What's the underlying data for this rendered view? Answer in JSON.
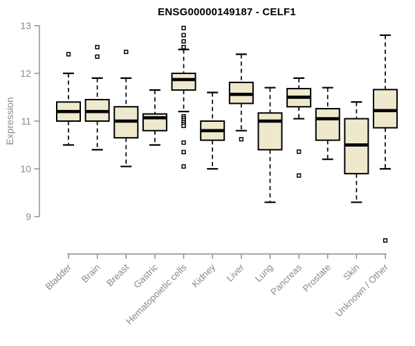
{
  "chart_data": {
    "type": "boxplot",
    "title": "ENSG00000149187 - CELF1",
    "ylabel": "Expression",
    "xlabel": "",
    "yticks": [
      9,
      10,
      11,
      12,
      13
    ],
    "y_axis_range": [
      9,
      13
    ],
    "grid": "off",
    "legend": "none",
    "categories": [
      "Bladder",
      "Brain",
      "Breast",
      "Gastric",
      "Hematopoietic cells",
      "Kidney",
      "Liver",
      "Lung",
      "Pancreas",
      "Prostate",
      "Skin",
      "Unknown / Other"
    ],
    "series": [
      {
        "category": "Bladder",
        "whisker_low": 10.5,
        "q1": 11.0,
        "median": 11.2,
        "q3": 11.4,
        "whisker_high": 12.0,
        "outliers": [
          12.4
        ]
      },
      {
        "category": "Brain",
        "whisker_low": 10.4,
        "q1": 11.0,
        "median": 11.2,
        "q3": 11.45,
        "whisker_high": 11.9,
        "outliers": [
          12.35,
          12.55
        ]
      },
      {
        "category": "Breast",
        "whisker_low": 10.05,
        "q1": 10.65,
        "median": 11.0,
        "q3": 11.3,
        "whisker_high": 11.9,
        "outliers": [
          12.45
        ]
      },
      {
        "category": "Gastric",
        "whisker_low": 10.5,
        "q1": 10.8,
        "median": 11.07,
        "q3": 11.15,
        "whisker_high": 11.65,
        "outliers": []
      },
      {
        "category": "Hematopoietic cells",
        "whisker_low": 11.2,
        "q1": 11.65,
        "median": 11.87,
        "q3": 12.0,
        "whisker_high": 12.5,
        "outliers": [
          12.95,
          12.8,
          12.67,
          12.55,
          11.1,
          11.06,
          11.02,
          10.98,
          10.94,
          10.9,
          10.55,
          10.35,
          10.05
        ]
      },
      {
        "category": "Kidney",
        "whisker_low": 10.0,
        "q1": 10.6,
        "median": 10.8,
        "q3": 11.0,
        "whisker_high": 11.6,
        "outliers": []
      },
      {
        "category": "Liver",
        "whisker_low": 10.8,
        "q1": 11.37,
        "median": 11.56,
        "q3": 11.81,
        "whisker_high": 12.4,
        "outliers": [
          10.62
        ]
      },
      {
        "category": "Lung",
        "whisker_low": 9.3,
        "q1": 10.4,
        "median": 11.0,
        "q3": 11.17,
        "whisker_high": 11.7,
        "outliers": []
      },
      {
        "category": "Pancreas",
        "whisker_low": 11.05,
        "q1": 11.3,
        "median": 11.5,
        "q3": 11.68,
        "whisker_high": 11.9,
        "outliers": [
          10.36,
          9.86
        ]
      },
      {
        "category": "Prostate",
        "whisker_low": 10.2,
        "q1": 10.6,
        "median": 11.05,
        "q3": 11.26,
        "whisker_high": 11.7,
        "outliers": []
      },
      {
        "category": "Skin",
        "whisker_low": 9.3,
        "q1": 9.9,
        "median": 10.5,
        "q3": 11.05,
        "whisker_high": 11.4,
        "outliers": []
      },
      {
        "category": "Unknown / Other",
        "whisker_low": 10.0,
        "q1": 10.86,
        "median": 11.22,
        "q3": 11.66,
        "whisker_high": 12.8,
        "outliers": [
          8.5
        ]
      }
    ],
    "colors": {
      "box_fill": "#EEE8CD",
      "box_border": "#000000",
      "median": "#000000",
      "whisker": "#000000",
      "outlier_stroke": "#000000",
      "outlier_fill": "#ffffff",
      "axis": "#8a8a8a",
      "tick_label": "#8a8a8a",
      "title": "#000000",
      "background": "#ffffff"
    }
  }
}
